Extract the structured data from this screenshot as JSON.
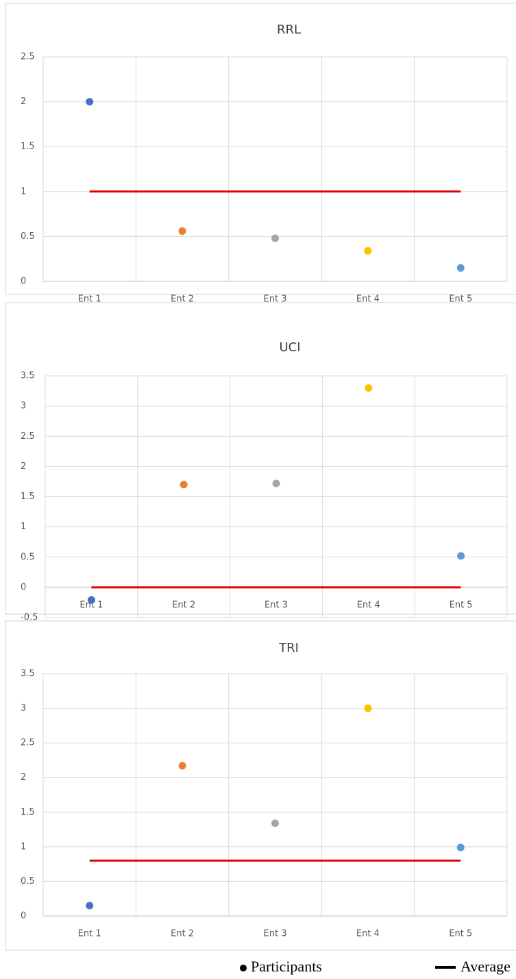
{
  "chart_data": [
    {
      "type": "scatter",
      "title": "RRL",
      "categories": [
        "Ent 1",
        "Ent 2",
        "Ent 3",
        "Ent 4",
        "Ent 5"
      ],
      "values": [
        2,
        0.56,
        0.48,
        0.34,
        0.15
      ],
      "colors": [
        "#4472c4",
        "#ed7d31",
        "#a5a5a5",
        "#ffc000",
        "#5b9bd5"
      ],
      "average": 1,
      "average_color": "#e00000",
      "ylim": [
        0,
        2.5
      ],
      "yticks": [
        0,
        0.5,
        1,
        1.5,
        2,
        2.5
      ],
      "grid": true
    },
    {
      "type": "scatter",
      "title": "UCI",
      "categories": [
        "Ent 1",
        "Ent 2",
        "Ent 3",
        "Ent 4",
        "Ent 5"
      ],
      "values": [
        -0.21,
        1.7,
        1.72,
        3.3,
        0.52
      ],
      "colors": [
        "#4472c4",
        "#ed7d31",
        "#a5a5a5",
        "#ffc000",
        "#5b9bd5"
      ],
      "average": 0,
      "average_color": "#e00000",
      "ylim": [
        -0.5,
        3.5
      ],
      "yticks": [
        -0.5,
        0,
        0.5,
        1,
        1.5,
        2,
        2.5,
        3,
        3.5
      ],
      "grid": true
    },
    {
      "type": "scatter",
      "title": "TRI",
      "categories": [
        "Ent 1",
        "Ent 2",
        "Ent 3",
        "Ent 4",
        "Ent 5"
      ],
      "values": [
        0.15,
        2.17,
        1.34,
        3,
        0.99
      ],
      "colors": [
        "#4472c4",
        "#ed7d31",
        "#a5a5a5",
        "#ffc000",
        "#5b9bd5"
      ],
      "average": 0.8,
      "average_color": "#e00000",
      "ylim": [
        0,
        3.5
      ],
      "yticks": [
        0,
        0.5,
        1,
        1.5,
        2,
        2.5,
        3,
        3.5
      ],
      "grid": true
    }
  ],
  "legend": [
    {
      "name": "Participants",
      "marker": "dot"
    },
    {
      "name": "Average",
      "marker": "line"
    }
  ]
}
